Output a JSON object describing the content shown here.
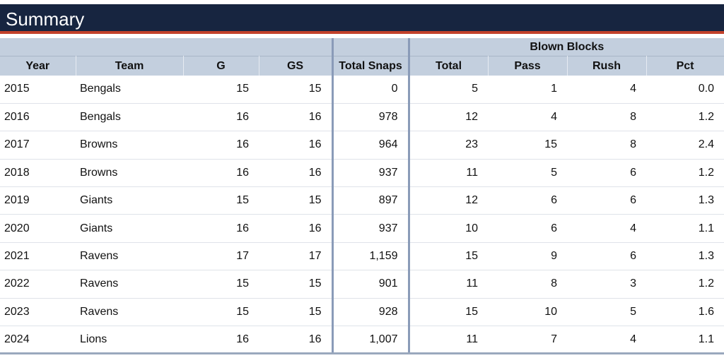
{
  "header": {
    "title": "Summary"
  },
  "table": {
    "group_label": "Blown Blocks",
    "columns": [
      "Year",
      "Team",
      "G",
      "GS",
      "Total Snaps",
      "Total",
      "Pass",
      "Rush",
      "Pct"
    ],
    "rows": [
      [
        "2015",
        "Bengals",
        "15",
        "15",
        "0",
        "5",
        "1",
        "4",
        "0.0"
      ],
      [
        "2016",
        "Bengals",
        "16",
        "16",
        "978",
        "12",
        "4",
        "8",
        "1.2"
      ],
      [
        "2017",
        "Browns",
        "16",
        "16",
        "964",
        "23",
        "15",
        "8",
        "2.4"
      ],
      [
        "2018",
        "Browns",
        "16",
        "16",
        "937",
        "11",
        "5",
        "6",
        "1.2"
      ],
      [
        "2019",
        "Giants",
        "15",
        "15",
        "897",
        "12",
        "6",
        "6",
        "1.3"
      ],
      [
        "2020",
        "Giants",
        "16",
        "16",
        "937",
        "10",
        "6",
        "4",
        "1.1"
      ],
      [
        "2021",
        "Ravens",
        "17",
        "17",
        "1,159",
        "15",
        "9",
        "6",
        "1.3"
      ],
      [
        "2022",
        "Ravens",
        "15",
        "15",
        "901",
        "11",
        "8",
        "3",
        "1.2"
      ],
      [
        "2023",
        "Ravens",
        "15",
        "15",
        "928",
        "15",
        "10",
        "5",
        "1.6"
      ],
      [
        "2024",
        "Lions",
        "16",
        "16",
        "1,007",
        "11",
        "7",
        "4",
        "1.1"
      ]
    ]
  },
  "colors": {
    "header_bg": "#172540",
    "accent": "#c2412b",
    "column_header_bg": "#c3cfde"
  }
}
